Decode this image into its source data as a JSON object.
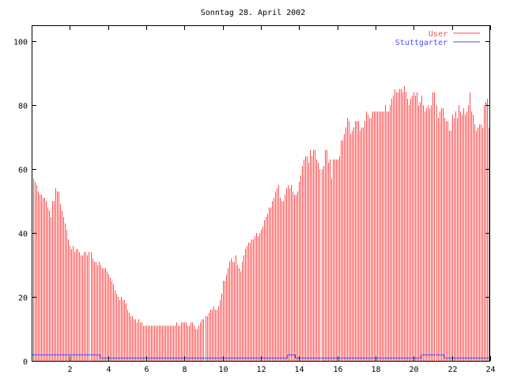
{
  "chart_data": {
    "type": "bar",
    "title": "Sonntag 28. April 2002",
    "xlabel": "",
    "ylabel": "",
    "xlim": [
      0,
      24
    ],
    "ylim": [
      0,
      105
    ],
    "xticks": [
      2,
      4,
      6,
      8,
      10,
      12,
      14,
      16,
      18,
      20,
      22,
      24
    ],
    "yticks": [
      0,
      20,
      40,
      60,
      80,
      100
    ],
    "grid": false,
    "legend_position": "top-right",
    "colors": {
      "user": "#ff4d4d",
      "stuttgarter": "#4d4dff",
      "axis": "#000000"
    },
    "series": [
      {
        "name": "User",
        "style": "impulses",
        "x_step_hours": 0.08333,
        "values": [
          57,
          57,
          56,
          55,
          53,
          52,
          52,
          51,
          51,
          50,
          48,
          47,
          45,
          50,
          50,
          54,
          53,
          53,
          49,
          47,
          45,
          43,
          41,
          38,
          36,
          35,
          36,
          34,
          35,
          35,
          34,
          33,
          33,
          34,
          34,
          33,
          34,
          34,
          32,
          31,
          31,
          30,
          31,
          30,
          29,
          29,
          29,
          28,
          27,
          26,
          25,
          24,
          22,
          21,
          20,
          19,
          20,
          19,
          19,
          18,
          16,
          15,
          14,
          14,
          13,
          13,
          12,
          13,
          12,
          12,
          11,
          11,
          11,
          11,
          11,
          11,
          11,
          11,
          11,
          11,
          11,
          11,
          11,
          11,
          11,
          11,
          11,
          11,
          11,
          11,
          11,
          12,
          11,
          11,
          12,
          12,
          12,
          12,
          11,
          11,
          12,
          12,
          11,
          10,
          10,
          11,
          12,
          13,
          13,
          14,
          14,
          15,
          16,
          16,
          17,
          16,
          16,
          17,
          19,
          21,
          25,
          25,
          27,
          29,
          31,
          32,
          31,
          31,
          33,
          30,
          29,
          28,
          31,
          33,
          35,
          36,
          37,
          37,
          38,
          38,
          39,
          40,
          39,
          40,
          41,
          42,
          44,
          45,
          46,
          48,
          48,
          50,
          51,
          53,
          54,
          55,
          51,
          50,
          50,
          52,
          54,
          55,
          54,
          55,
          53,
          52,
          52,
          53,
          56,
          58,
          61,
          63,
          64,
          64,
          62,
          66,
          64,
          66,
          66,
          63,
          62,
          60,
          60,
          61,
          66,
          66,
          62,
          63,
          57,
          63,
          63,
          63,
          63,
          64,
          69,
          69,
          71,
          73,
          76,
          75,
          71,
          72,
          73,
          75,
          75,
          75,
          72,
          73,
          73,
          75,
          78,
          77,
          76,
          76,
          78,
          78,
          78,
          78,
          78,
          78,
          78,
          78,
          80,
          78,
          78,
          80,
          82,
          83,
          85,
          84,
          84,
          85,
          85,
          84,
          86,
          84,
          82,
          80,
          82,
          83,
          84,
          83,
          84,
          80,
          81,
          83,
          80,
          78,
          79,
          80,
          79,
          80,
          84,
          84,
          80,
          76,
          78,
          79,
          79,
          76,
          75,
          75,
          72,
          72,
          77,
          76,
          78,
          76,
          80,
          78,
          77,
          79,
          77,
          78,
          80,
          84,
          78,
          77,
          74,
          72,
          73,
          74,
          74,
          73,
          80,
          81,
          82,
          73
        ]
      },
      {
        "name": "Stuttgarter",
        "style": "steps",
        "x": [
          0,
          3.6,
          3.6,
          13.4,
          13.4,
          13.8,
          13.8,
          20.4,
          20.4,
          21.6,
          21.6,
          24
        ],
        "y": [
          2,
          2,
          1,
          1,
          2,
          2,
          1,
          1,
          2,
          2,
          1,
          1
        ]
      }
    ]
  }
}
